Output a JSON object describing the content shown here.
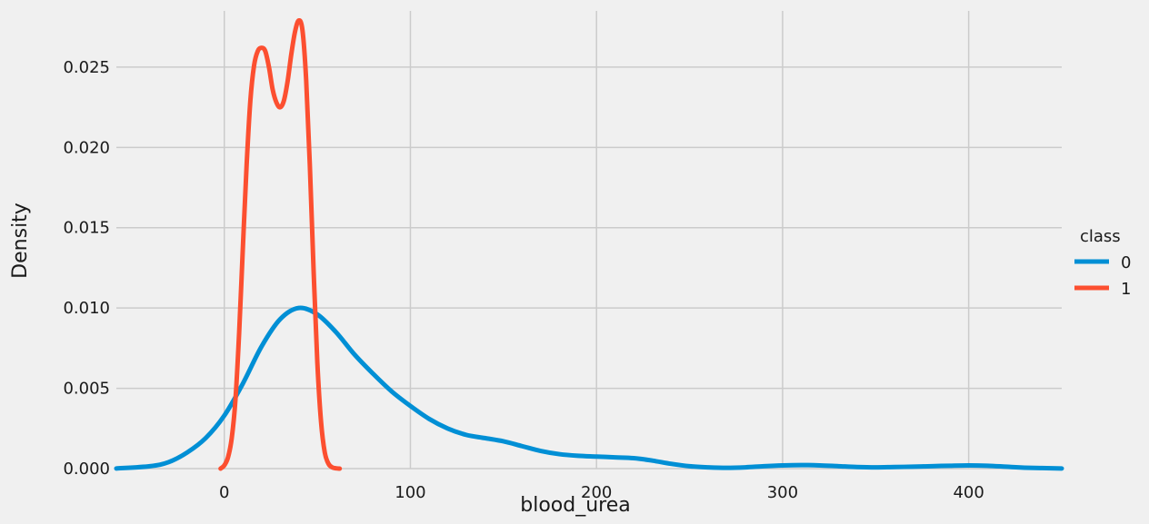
{
  "chart_data": {
    "type": "line",
    "title": "",
    "xlabel": "blood_urea",
    "ylabel": "Density",
    "xlim": [
      -58,
      450
    ],
    "ylim": [
      0,
      0.0285
    ],
    "xticks": [
      0,
      100,
      200,
      300,
      400
    ],
    "xtick_labels": [
      "0",
      "100",
      "200",
      "300",
      "400"
    ],
    "yticks": [
      0.0,
      0.005,
      0.01,
      0.015,
      0.02,
      0.025
    ],
    "ytick_labels": [
      "0.000",
      "0.005",
      "0.010",
      "0.015",
      "0.020",
      "0.025"
    ],
    "grid": true,
    "legend": {
      "title": "class",
      "placement": "right"
    },
    "series": [
      {
        "name": "0",
        "color": "#008fd5",
        "x": [
          -58,
          -40,
          -30,
          -20,
          -10,
          0,
          10,
          20,
          30,
          40,
          50,
          60,
          70,
          80,
          90,
          100,
          110,
          120,
          130,
          140,
          150,
          160,
          170,
          180,
          190,
          200,
          210,
          220,
          230,
          240,
          250,
          260,
          270,
          280,
          290,
          300,
          310,
          320,
          330,
          340,
          350,
          360,
          370,
          380,
          390,
          400,
          410,
          420,
          430,
          450
        ],
        "y": [
          1e-05,
          0.00015,
          0.0004,
          0.001,
          0.0019,
          0.0033,
          0.0053,
          0.0076,
          0.0093,
          0.01,
          0.0096,
          0.0085,
          0.0071,
          0.0059,
          0.0048,
          0.0039,
          0.0031,
          0.0025,
          0.0021,
          0.0019,
          0.0017,
          0.0014,
          0.0011,
          0.0009,
          0.0008,
          0.00075,
          0.0007,
          0.00065,
          0.0005,
          0.0003,
          0.00015,
          8e-05,
          5e-05,
          8e-05,
          0.00015,
          0.0002,
          0.00022,
          0.0002,
          0.00015,
          0.0001,
          8e-05,
          0.0001,
          0.00012,
          0.00015,
          0.00018,
          0.0002,
          0.00018,
          0.00012,
          6e-05,
          1e-05
        ]
      },
      {
        "name": "1",
        "color": "#fc4f30",
        "x": [
          -2,
          0,
          2,
          4,
          6,
          8,
          10,
          12,
          14,
          16,
          18,
          20,
          22,
          24,
          26,
          28,
          30,
          32,
          34,
          36,
          38,
          40,
          42,
          44,
          46,
          48,
          50,
          52,
          54,
          56,
          58,
          60,
          62
        ],
        "y": [
          0.0,
          0.0002,
          0.0007,
          0.0019,
          0.0043,
          0.0085,
          0.0138,
          0.0189,
          0.0229,
          0.0251,
          0.026,
          0.0262,
          0.026,
          0.025,
          0.0236,
          0.0228,
          0.0225,
          0.0229,
          0.0241,
          0.0258,
          0.0272,
          0.0279,
          0.0273,
          0.0242,
          0.0188,
          0.0123,
          0.0066,
          0.0029,
          0.001,
          0.0003,
          8e-05,
          2e-05,
          0.0
        ]
      }
    ]
  }
}
